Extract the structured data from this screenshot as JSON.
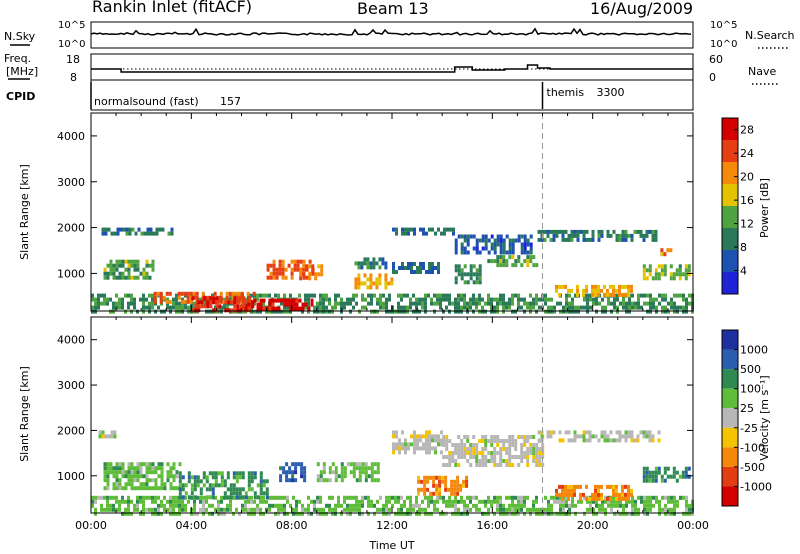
{
  "header": {
    "station": "Rankin Inlet (fitACF)",
    "beam": "Beam 13",
    "date": "16/Aug/2009"
  },
  "summary": {
    "nsky_label": "N.Sky",
    "nsky_ticks": [
      "10^5",
      "10^0"
    ],
    "nsearch_label": "N.Search",
    "nsearch_ticks": [
      "10^5",
      "10^0"
    ],
    "freq_label_1": "Freq.",
    "freq_label_2": "[MHz]",
    "freq_ticks": [
      "18",
      "8"
    ],
    "nave_label": "Nave",
    "nave_ticks": [
      "60",
      "0"
    ],
    "cpid_label": "CPID",
    "cpid_entries": [
      {
        "name": "normalsound (fast)",
        "id": "157",
        "start_hour": 0
      },
      {
        "name": "themis",
        "id": "3300",
        "start_hour": 18
      }
    ]
  },
  "chart_data": [
    {
      "type": "heatmap",
      "name": "power",
      "ylabel": "Slant Range [km]",
      "xlabel": "",
      "ylim": [
        180,
        4500
      ],
      "xlim": [
        0,
        24
      ],
      "yticks": [
        1000,
        2000,
        3000,
        4000
      ],
      "colorbar": {
        "label": "Power [dB]",
        "ticks": [
          4,
          8,
          12,
          16,
          20,
          24,
          28
        ],
        "range": [
          0,
          30
        ],
        "colors": [
          "#1f23d6",
          "#1d52b0",
          "#2a7a5a",
          "#4fa341",
          "#e5c200",
          "#f58a0a",
          "#e63e12",
          "#d40000"
        ]
      },
      "regions": [
        {
          "x": [
            0.0,
            24.0
          ],
          "y": [
            180,
            560
          ],
          "level": 10
        },
        {
          "x": [
            0.5,
            2.5
          ],
          "y": [
            900,
            1300
          ],
          "level": 12
        },
        {
          "x": [
            2.5,
            6.5
          ],
          "y": [
            350,
            600
          ],
          "level": 24
        },
        {
          "x": [
            4.0,
            6.5
          ],
          "y": [
            180,
            500
          ],
          "level": 28
        },
        {
          "x": [
            6.0,
            8.8
          ],
          "y": [
            200,
            450
          ],
          "level": 30
        },
        {
          "x": [
            7.0,
            8.8
          ],
          "y": [
            900,
            1300
          ],
          "level": 24
        },
        {
          "x": [
            8.3,
            9.2
          ],
          "y": [
            900,
            1200
          ],
          "level": 22
        },
        {
          "x": [
            10.5,
            12.0
          ],
          "y": [
            700,
            1000
          ],
          "level": 20
        },
        {
          "x": [
            10.5,
            11.8
          ],
          "y": [
            1100,
            1350
          ],
          "level": 8
        },
        {
          "x": [
            12.0,
            14.0
          ],
          "y": [
            1000,
            1250
          ],
          "level": 6
        },
        {
          "x": [
            14.5,
            15.5
          ],
          "y": [
            800,
            1200
          ],
          "level": 10
        },
        {
          "x": [
            15.8,
            17.8
          ],
          "y": [
            1150,
            1400
          ],
          "level": 12
        },
        {
          "x": [
            12.0,
            14.5
          ],
          "y": [
            1850,
            2000
          ],
          "level": 6
        },
        {
          "x": [
            14.5,
            17.5
          ],
          "y": [
            1500,
            1850
          ],
          "level": 5
        },
        {
          "x": [
            17.8,
            22.5
          ],
          "y": [
            1700,
            1950
          ],
          "level": 8
        },
        {
          "x": [
            18.5,
            21.5
          ],
          "y": [
            500,
            750
          ],
          "level": 20
        },
        {
          "x": [
            0.3,
            3.2
          ],
          "y": [
            1850,
            2000
          ],
          "level": 8
        },
        {
          "x": [
            22.0,
            23.9
          ],
          "y": [
            900,
            1200
          ],
          "level": 14
        },
        {
          "x": [
            22.7,
            23.1
          ],
          "y": [
            1400,
            1550
          ],
          "level": 22
        }
      ]
    },
    {
      "type": "heatmap",
      "name": "velocity",
      "ylabel": "Slant Range [km]",
      "xlabel": "Time UT",
      "ylim": [
        180,
        4500
      ],
      "xlim": [
        0,
        24
      ],
      "yticks": [
        1000,
        2000,
        3000,
        4000
      ],
      "xticks": [
        "00:00",
        "04:00",
        "08:00",
        "12:00",
        "16:00",
        "20:00",
        "00:00"
      ],
      "colorbar": {
        "label": "Velocity [m s⁻¹]",
        "ticks": [
          "1000",
          "500",
          "100",
          "25",
          "-25",
          "-100",
          "-500",
          "-1000"
        ],
        "colors": [
          "#1e2fa0",
          "#2a5fb0",
          "#2f8a52",
          "#5fbd3a",
          "#b7b7b7",
          "#f5c400",
          "#f5870a",
          "#e33e12",
          "#d40000"
        ]
      },
      "regions": [
        {
          "x": [
            0.0,
            24.0
          ],
          "y": [
            180,
            560
          ],
          "level": 3
        },
        {
          "x": [
            0.5,
            3.5
          ],
          "y": [
            700,
            1300
          ],
          "level": 3
        },
        {
          "x": [
            3.5,
            7.0
          ],
          "y": [
            500,
            1100
          ],
          "level": 2
        },
        {
          "x": [
            7.5,
            8.5
          ],
          "y": [
            900,
            1300
          ],
          "level": 1
        },
        {
          "x": [
            9.0,
            11.5
          ],
          "y": [
            900,
            1300
          ],
          "level": 3
        },
        {
          "x": [
            12.0,
            14.0
          ],
          "y": [
            1500,
            2000
          ],
          "level": 4
        },
        {
          "x": [
            14.0,
            18.0
          ],
          "y": [
            1200,
            1900
          ],
          "level": 4
        },
        {
          "x": [
            13.0,
            15.0
          ],
          "y": [
            600,
            1000
          ],
          "level": 6
        },
        {
          "x": [
            17.8,
            22.8
          ],
          "y": [
            1750,
            2000
          ],
          "level": 4
        },
        {
          "x": [
            18.5,
            21.5
          ],
          "y": [
            500,
            800
          ],
          "level": 6
        },
        {
          "x": [
            22.0,
            23.9
          ],
          "y": [
            900,
            1200
          ],
          "level": 2
        },
        {
          "x": [
            0.3,
            1.0
          ],
          "y": [
            1850,
            2000
          ],
          "level": 4
        }
      ]
    }
  ]
}
